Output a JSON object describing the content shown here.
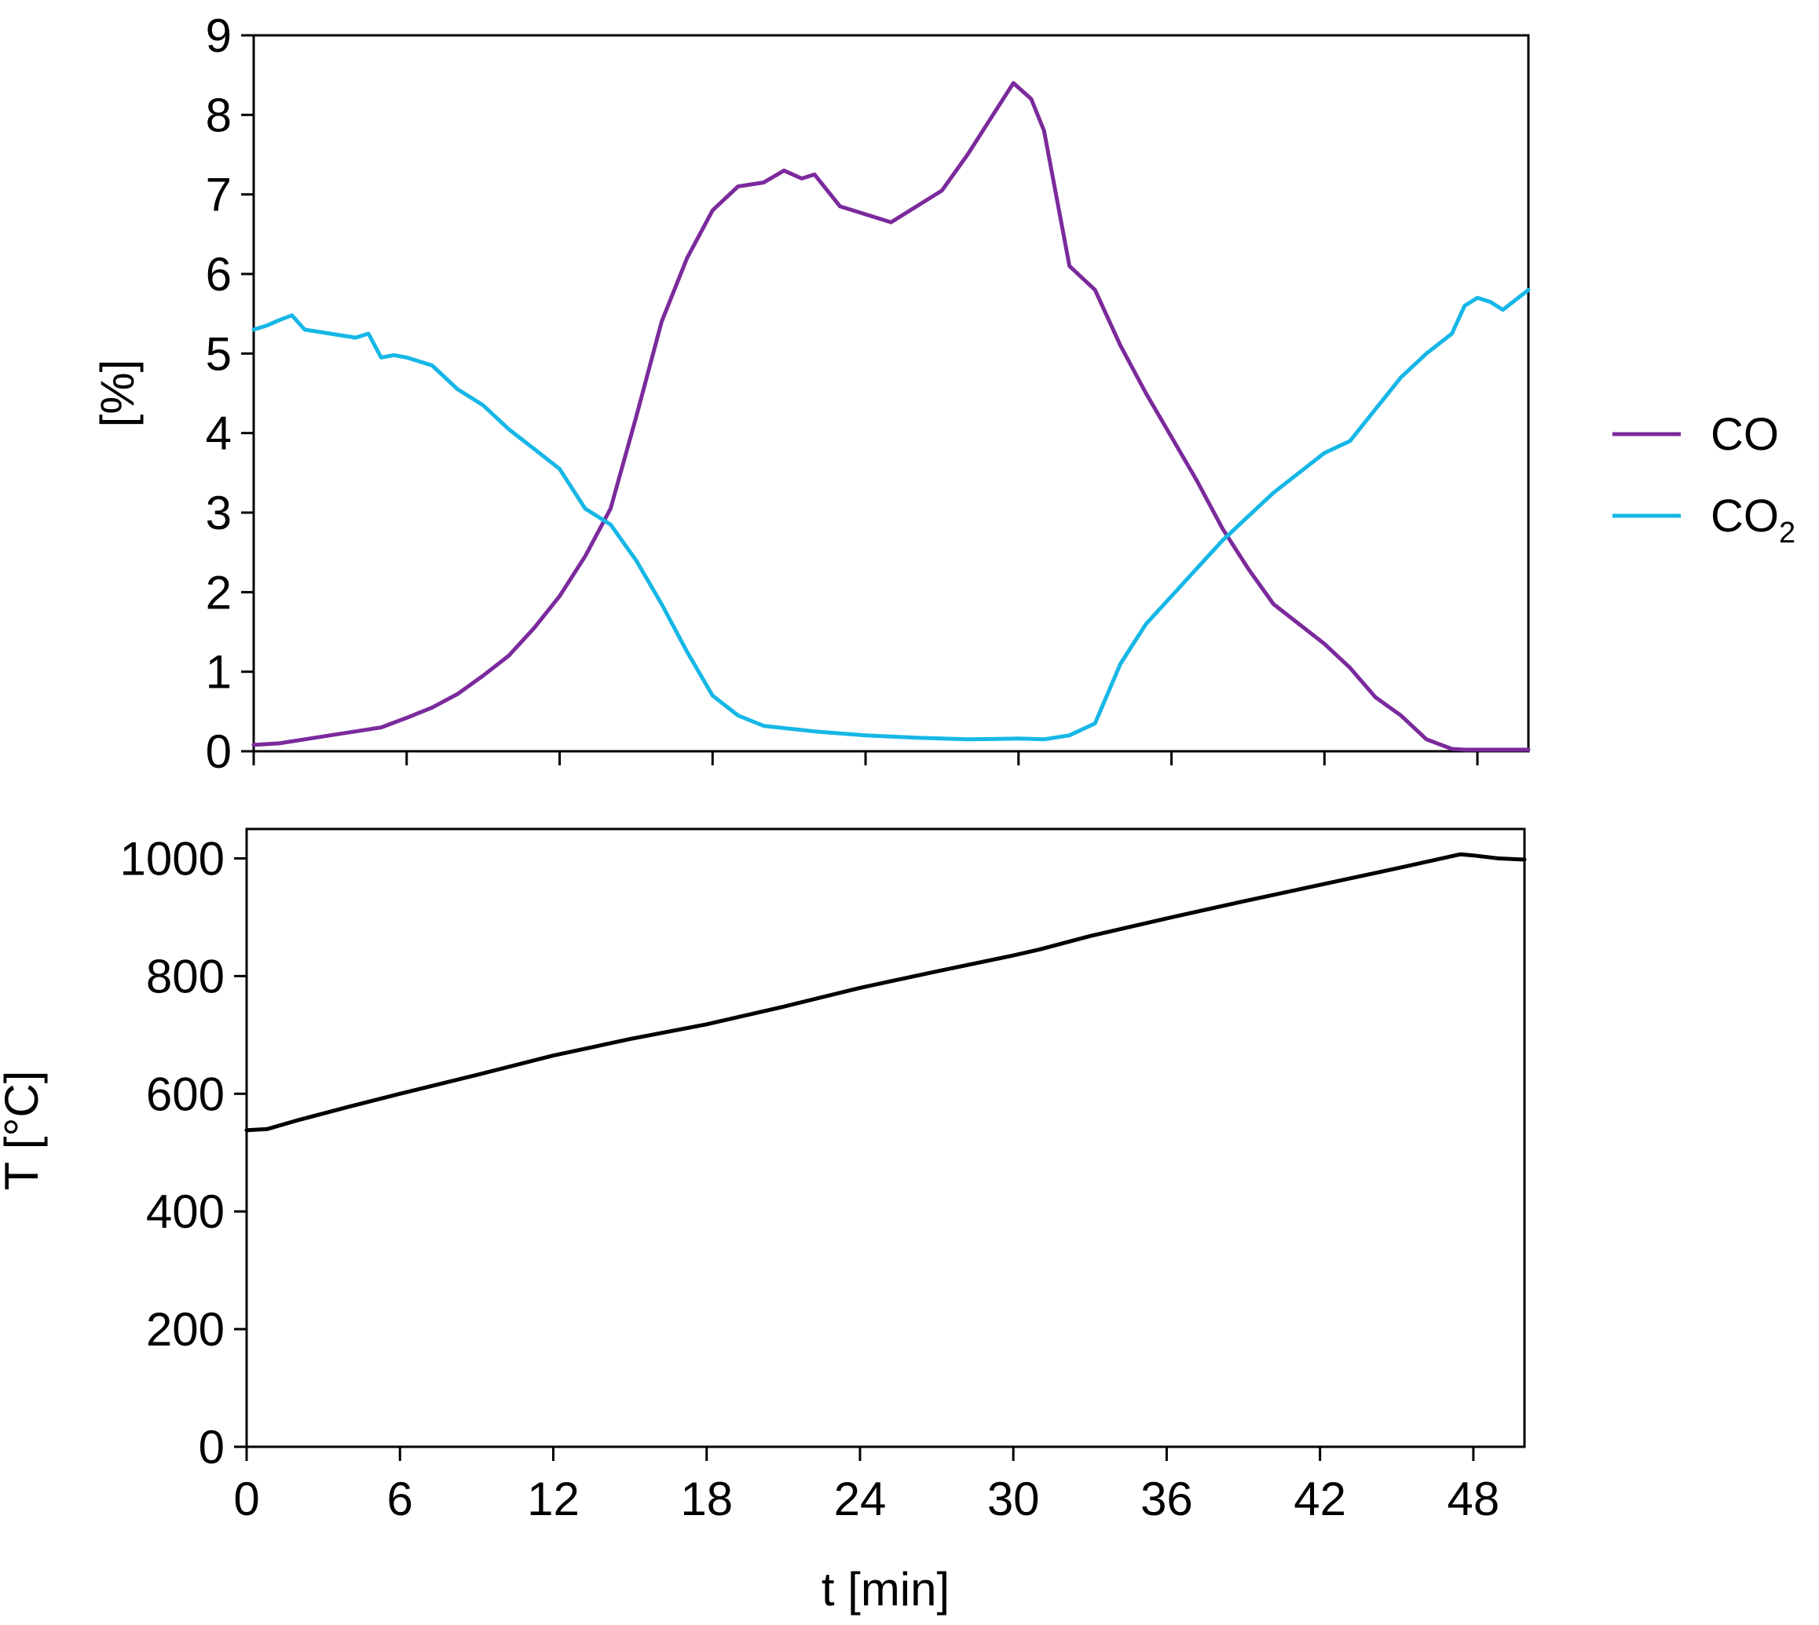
{
  "chart_data": [
    {
      "type": "line",
      "title": "",
      "xlabel": "",
      "ylabel": "[%]",
      "xlim": [
        0,
        50
      ],
      "ylim": [
        0,
        9
      ],
      "xticks": [
        0,
        6,
        12,
        18,
        24,
        30,
        36,
        42,
        48
      ],
      "yticks": [
        0,
        1,
        2,
        3,
        4,
        5,
        6,
        7,
        8,
        9
      ],
      "x_tick_labels_shown": false,
      "grid": false,
      "legend_position": "right",
      "series": [
        {
          "name": "CO",
          "name_base": "CO",
          "name_sub": "",
          "color": "#7b2a9c",
          "x": [
            0,
            1,
            2,
            3,
            4,
            5,
            6,
            7,
            8,
            9,
            10,
            11,
            12,
            13,
            14,
            15,
            16,
            17,
            18,
            19,
            20,
            20.8,
            21.5,
            22,
            22.5,
            23,
            24,
            25,
            26,
            27,
            28,
            29,
            29.8,
            30.5,
            31,
            32,
            33,
            34,
            35,
            36,
            37,
            38,
            39,
            40,
            41,
            42,
            43,
            44,
            45,
            46,
            47,
            47.5,
            48,
            49,
            50
          ],
          "y": [
            0.08,
            0.1,
            0.15,
            0.2,
            0.25,
            0.3,
            0.42,
            0.55,
            0.72,
            0.95,
            1.2,
            1.55,
            1.95,
            2.45,
            3.05,
            4.2,
            5.4,
            6.2,
            6.8,
            7.1,
            7.15,
            7.3,
            7.2,
            7.25,
            7.05,
            6.85,
            6.75,
            6.65,
            6.85,
            7.05,
            7.5,
            8.0,
            8.4,
            8.2,
            7.8,
            6.1,
            5.8,
            5.1,
            4.5,
            3.95,
            3.4,
            2.8,
            2.3,
            1.85,
            1.6,
            1.35,
            1.05,
            0.68,
            0.45,
            0.15,
            0.03,
            0.02,
            0.02,
            0.02,
            0.02
          ]
        },
        {
          "name": "CO2",
          "name_base": "CO",
          "name_sub": "2",
          "color": "#16b7e6",
          "x": [
            0,
            0.5,
            1,
            1.5,
            2,
            3,
            4,
            4.5,
            5,
            5.5,
            6,
            7,
            8,
            9,
            10,
            11,
            12,
            13,
            14,
            15,
            16,
            17,
            18,
            19,
            20,
            22,
            24,
            26,
            28,
            30,
            31,
            32,
            33,
            34,
            35,
            36,
            37,
            38,
            39,
            40,
            41,
            42,
            43,
            44,
            45,
            46,
            47,
            47.5,
            48,
            48.5,
            49,
            50
          ],
          "y": [
            5.3,
            5.35,
            5.42,
            5.48,
            5.3,
            5.25,
            5.2,
            5.25,
            4.95,
            4.98,
            4.95,
            4.85,
            4.55,
            4.35,
            4.05,
            3.8,
            3.55,
            3.05,
            2.85,
            2.4,
            1.85,
            1.25,
            0.7,
            0.45,
            0.32,
            0.25,
            0.2,
            0.17,
            0.15,
            0.16,
            0.15,
            0.2,
            0.35,
            1.1,
            1.6,
            1.95,
            2.3,
            2.65,
            2.95,
            3.25,
            3.5,
            3.75,
            3.9,
            4.3,
            4.7,
            5.0,
            5.25,
            5.6,
            5.7,
            5.65,
            5.55,
            5.8
          ]
        }
      ]
    },
    {
      "type": "line",
      "title": "",
      "xlabel": "t [min]",
      "ylabel": "T [°C]",
      "xlim": [
        0,
        50
      ],
      "ylim": [
        0,
        1050
      ],
      "xticks": [
        0,
        6,
        12,
        18,
        24,
        30,
        36,
        42,
        48
      ],
      "yticks": [
        0,
        200,
        400,
        600,
        800,
        1000
      ],
      "grid": false,
      "legend_position": "none",
      "series": [
        {
          "name": "T",
          "color": "#000000",
          "x": [
            0,
            0.8,
            2,
            4,
            6,
            9,
            12,
            15,
            18,
            21,
            24,
            27,
            30,
            31,
            33,
            36,
            39,
            42,
            45,
            47.5,
            48,
            49,
            50
          ],
          "y": [
            538,
            540,
            555,
            578,
            600,
            632,
            665,
            693,
            718,
            748,
            780,
            808,
            835,
            845,
            868,
            898,
            927,
            955,
            983,
            1007,
            1005,
            1000,
            998
          ]
        }
      ]
    }
  ]
}
